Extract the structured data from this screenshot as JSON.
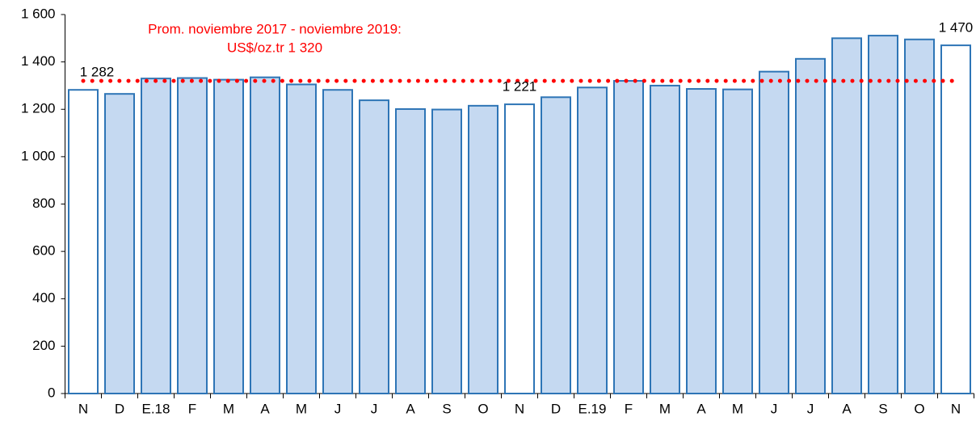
{
  "chart_data": {
    "type": "bar",
    "categories": [
      "N",
      "D",
      "E.18",
      "F",
      "M",
      "A",
      "M",
      "J",
      "J",
      "A",
      "S",
      "O",
      "N",
      "D",
      "E.19",
      "F",
      "M",
      "A",
      "M",
      "J",
      "J",
      "A",
      "S",
      "O",
      "N"
    ],
    "values": [
      1282,
      1265,
      1330,
      1332,
      1325,
      1335,
      1305,
      1282,
      1238,
      1201,
      1199,
      1215,
      1221,
      1251,
      1292,
      1320,
      1300,
      1286,
      1284,
      1359,
      1413,
      1500,
      1511,
      1495,
      1470
    ],
    "value_labels": [
      "1 282",
      null,
      null,
      null,
      null,
      null,
      null,
      null,
      null,
      null,
      null,
      null,
      "1 221",
      null,
      null,
      null,
      null,
      null,
      null,
      null,
      null,
      null,
      null,
      null,
      "1 470"
    ],
    "color": "#c5d9f1",
    "edge_color": "#2e75b6",
    "highlight": {
      "indices": [
        0,
        12,
        24
      ],
      "color": "#ffffff"
    },
    "ylim": [
      0,
      1600
    ],
    "yticks": [
      0,
      200,
      400,
      600,
      800,
      {
        "value": 1000,
        "label": "1 000"
      },
      {
        "value": 1200,
        "label": "1 200"
      },
      {
        "value": 1400,
        "label": "1 400"
      },
      {
        "value": 1600,
        "label": "1 600"
      }
    ],
    "reference_line": {
      "value": 1320,
      "color": "#ff0000"
    },
    "annotation": [
      "Prom. noviembre 2017 - noviembre 2019:",
      "US$/oz.tr 1 320"
    ]
  }
}
